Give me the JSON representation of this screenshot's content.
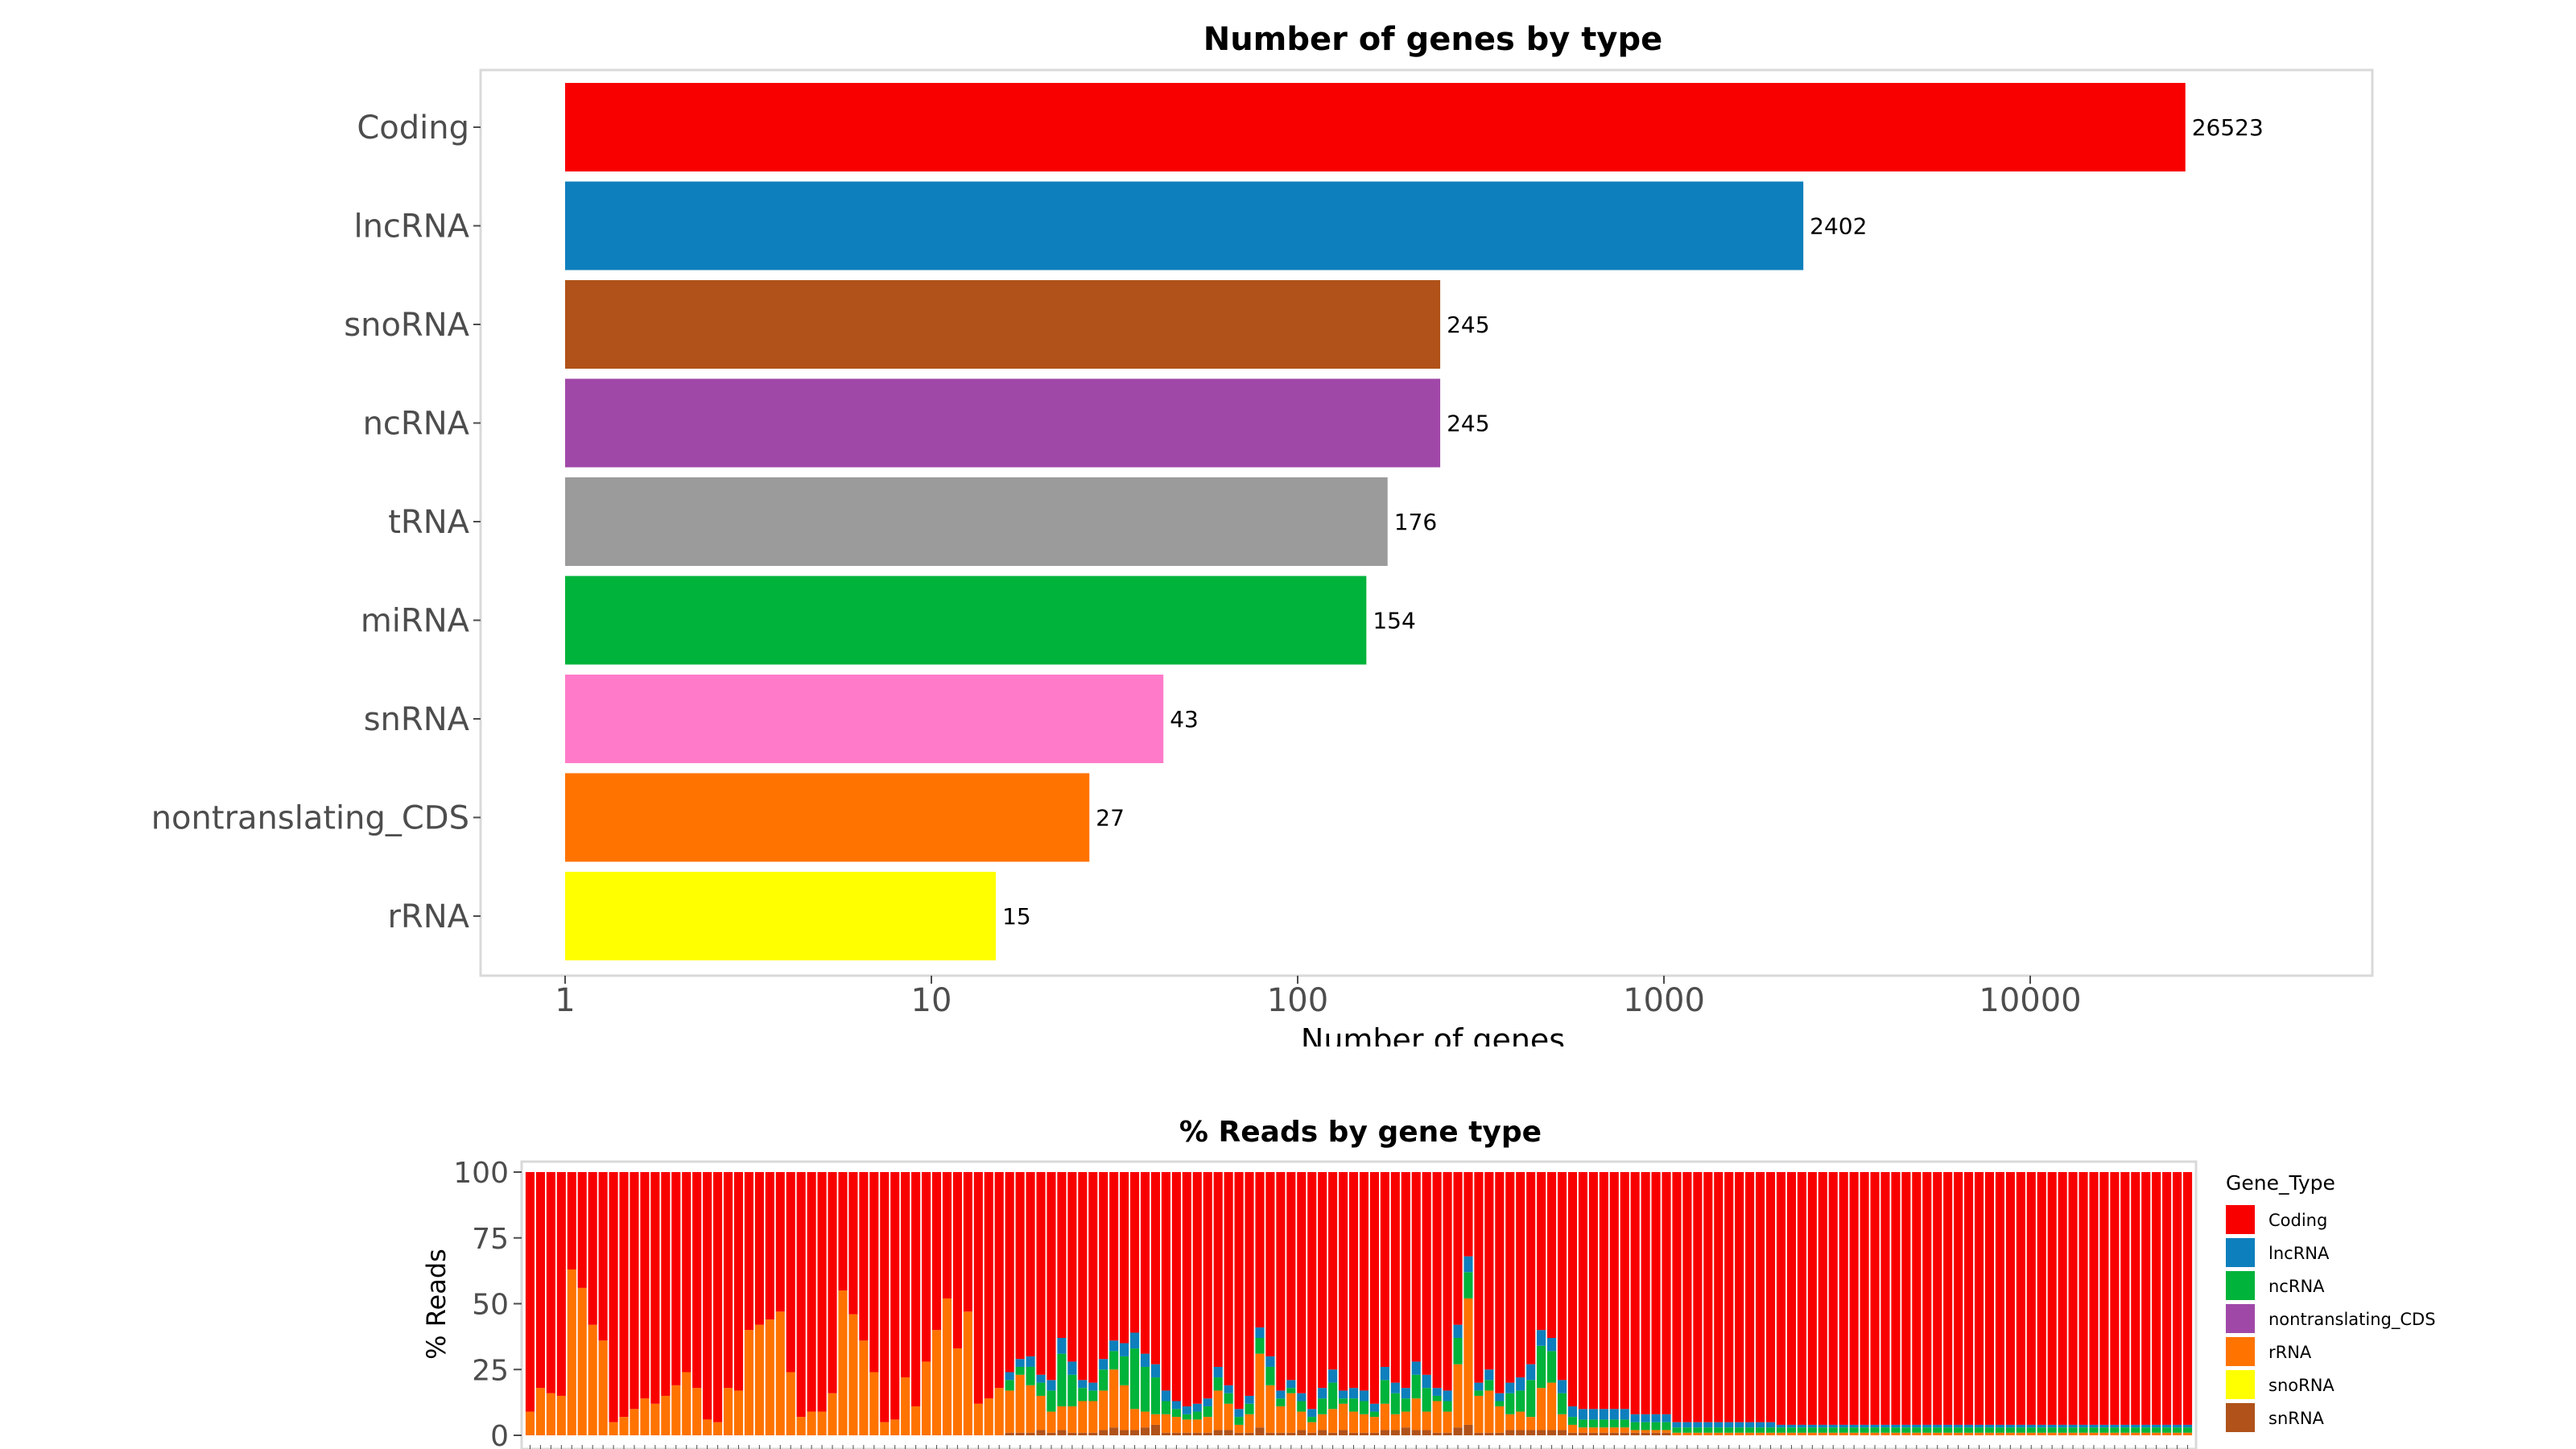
{
  "chart_data": [
    {
      "type": "bar",
      "orientation": "horizontal",
      "title": "Number of genes by type",
      "xlabel": "Number of genes",
      "ylabel": "",
      "x_scale": "log10",
      "xlim": [
        0.8,
        80000
      ],
      "x_ticks": [
        "1",
        "10",
        "100",
        "1000",
        "10000"
      ],
      "grid": false,
      "categories": [
        "Coding",
        "lncRNA",
        "snoRNA",
        "ncRNA",
        "tRNA",
        "miRNA",
        "snRNA",
        "nontranslating_CDS",
        "rRNA"
      ],
      "values": [
        26523,
        2402,
        245,
        245,
        176,
        154,
        43,
        27,
        15
      ],
      "value_labels": [
        "26523",
        "2402",
        "245",
        "245",
        "176",
        "154",
        "43",
        "27",
        "15"
      ],
      "colors": [
        "#f80000",
        "#0e7fbd",
        "#b0521a",
        "#a048a8",
        "#9b9b9b",
        "#00b33a",
        "#ff7bc9",
        "#ff7300",
        "#ffff00"
      ]
    },
    {
      "type": "bar",
      "stacked": true,
      "title": "% Reads by gene type",
      "xlabel": "",
      "ylabel": "% Reads",
      "ylim": [
        0,
        100
      ],
      "y_ticks": [
        "0",
        "25",
        "50",
        "75",
        "100"
      ],
      "grid": false,
      "legend": {
        "position": "right",
        "title": "Gene_Type",
        "entries": [
          {
            "name": "Coding",
            "color": "#f80000"
          },
          {
            "name": "lncRNA",
            "color": "#0e7fbd"
          },
          {
            "name": "ncRNA",
            "color": "#00b33a"
          },
          {
            "name": "nontranslating_CDS",
            "color": "#a048a8"
          },
          {
            "name": "rRNA",
            "color": "#ff7300"
          },
          {
            "name": "snoRNA",
            "color": "#ffff00"
          },
          {
            "name": "snRNA",
            "color": "#b0521a"
          }
        ]
      },
      "stack_order_bottom_to_top": [
        "snRNA",
        "rRNA",
        "ncRNA",
        "lncRNA",
        "Coding"
      ],
      "sample_count": 160,
      "samples_rRNA_pct": [
        9,
        18,
        16,
        15,
        63,
        56,
        42,
        36,
        5,
        7,
        10,
        14,
        12,
        15,
        19,
        24,
        18,
        6,
        5,
        18,
        17,
        40,
        42,
        44,
        47,
        24,
        7,
        9,
        9,
        16,
        55,
        46,
        36,
        24,
        5,
        6,
        22,
        11,
        28,
        40,
        52,
        33,
        47,
        12,
        14,
        18,
        16,
        22,
        18,
        13,
        8,
        9,
        10,
        12,
        12,
        15,
        22,
        17,
        8,
        6,
        4,
        7,
        6,
        5,
        5,
        6,
        15,
        10,
        3,
        7,
        28,
        18,
        10,
        15,
        7,
        4,
        6,
        9,
        10,
        8,
        7,
        6,
        10,
        6,
        6,
        12,
        7,
        12,
        8,
        24,
        48,
        14,
        16,
        10,
        6,
        7,
        5,
        16,
        18,
        6,
        3,
        2,
        2,
        2,
        2,
        2,
        1,
        1,
        1,
        1,
        1,
        1,
        1,
        1,
        1,
        1,
        1,
        1,
        1,
        1,
        1,
        1,
        1,
        1,
        1,
        1,
        1,
        1,
        1,
        1,
        1,
        1,
        1,
        1,
        1,
        1,
        1,
        1,
        1,
        1,
        1,
        1,
        1,
        1,
        1,
        1,
        1,
        1,
        1,
        1,
        1,
        1,
        1,
        1,
        1,
        1,
        1,
        1,
        1,
        1
      ],
      "samples_ncRNA_pct": [
        0,
        0,
        0,
        0,
        0,
        0,
        0,
        0,
        0,
        0,
        0,
        0,
        0,
        0,
        0,
        0,
        0,
        0,
        0,
        0,
        0,
        0,
        0,
        0,
        0,
        0,
        0,
        0,
        0,
        0,
        0,
        0,
        0,
        0,
        0,
        0,
        0,
        0,
        0,
        0,
        0,
        0,
        0,
        0,
        0,
        0,
        4,
        3,
        7,
        5,
        8,
        20,
        12,
        5,
        4,
        8,
        7,
        11,
        23,
        17,
        14,
        5,
        3,
        2,
        3,
        4,
        5,
        4,
        3,
        4,
        6,
        7,
        3,
        2,
        4,
        2,
        6,
        10,
        2,
        5,
        5,
        2,
        9,
        8,
        5,
        9,
        9,
        2,
        4,
        10,
        10,
        2,
        4,
        2,
        8,
        8,
        14,
        16,
        12,
        8,
        3,
        3,
        3,
        3,
        3,
        3,
        3,
        3,
        3,
        3,
        2,
        2,
        2,
        2,
        2,
        2,
        2,
        2,
        2,
        2,
        2,
        2,
        2,
        2,
        2,
        2,
        2,
        2,
        2,
        2,
        2,
        2,
        2,
        2,
        2,
        2,
        2,
        2,
        2,
        2,
        2,
        2,
        2,
        2,
        2,
        2,
        2,
        2,
        2,
        2,
        2,
        2,
        2,
        2,
        2,
        2,
        2,
        2,
        2,
        2
      ],
      "samples_lncRNA_pct": [
        0,
        0,
        0,
        0,
        0,
        0,
        0,
        0,
        0,
        0,
        0,
        0,
        0,
        0,
        0,
        0,
        0,
        0,
        0,
        0,
        0,
        0,
        0,
        0,
        0,
        0,
        0,
        0,
        0,
        0,
        0,
        0,
        0,
        0,
        0,
        0,
        0,
        0,
        0,
        0,
        0,
        0,
        0,
        0,
        0,
        0,
        3,
        3,
        4,
        3,
        4,
        6,
        5,
        3,
        3,
        4,
        4,
        5,
        6,
        5,
        5,
        4,
        3,
        3,
        3,
        3,
        4,
        3,
        3,
        3,
        4,
        4,
        3,
        3,
        3,
        3,
        4,
        5,
        3,
        4,
        4,
        3,
        5,
        4,
        4,
        5,
        5,
        3,
        4,
        5,
        6,
        3,
        4,
        3,
        4,
        5,
        6,
        6,
        5,
        5,
        4,
        4,
        4,
        4,
        4,
        4,
        3,
        3,
        3,
        3,
        2,
        2,
        2,
        2,
        2,
        2,
        2,
        2,
        2,
        2,
        1,
        1,
        1,
        1,
        1,
        1,
        1,
        1,
        1,
        1,
        1,
        1,
        1,
        1,
        1,
        1,
        1,
        1,
        1,
        1,
        1,
        1,
        1,
        1,
        1,
        1,
        1,
        1,
        1,
        1,
        1,
        1,
        1,
        1,
        1,
        1,
        1,
        1,
        1,
        1
      ],
      "samples_snRNA_pct": [
        0,
        0,
        0,
        0,
        0,
        0,
        0,
        0,
        0,
        0,
        0,
        0,
        0,
        0,
        0,
        0,
        0,
        0,
        0,
        0,
        0,
        0,
        0,
        0,
        0,
        0,
        0,
        0,
        0,
        0,
        0,
        0,
        0,
        0,
        0,
        0,
        0,
        0,
        0,
        0,
        0,
        0,
        0,
        0,
        0,
        0,
        1,
        1,
        1,
        2,
        1,
        2,
        1,
        1,
        1,
        2,
        3,
        2,
        2,
        3,
        4,
        1,
        1,
        1,
        1,
        1,
        2,
        2,
        1,
        1,
        3,
        1,
        1,
        1,
        2,
        1,
        2,
        1,
        2,
        1,
        1,
        1,
        2,
        2,
        3,
        2,
        2,
        1,
        1,
        3,
        4,
        1,
        1,
        1,
        2,
        2,
        2,
        2,
        2,
        2,
        1,
        1,
        1,
        1,
        1,
        1,
        1,
        1,
        1,
        1,
        0,
        0,
        0,
        0,
        0,
        0,
        0,
        0,
        0,
        0,
        0,
        0,
        0,
        0,
        0,
        0,
        0,
        0,
        0,
        0,
        0,
        0,
        0,
        0,
        0,
        0,
        0,
        0,
        0,
        0,
        0,
        0,
        0,
        0,
        0,
        0,
        0,
        0,
        0,
        0,
        0,
        0,
        0,
        0,
        0,
        0,
        0,
        0,
        0,
        0
      ]
    }
  ]
}
